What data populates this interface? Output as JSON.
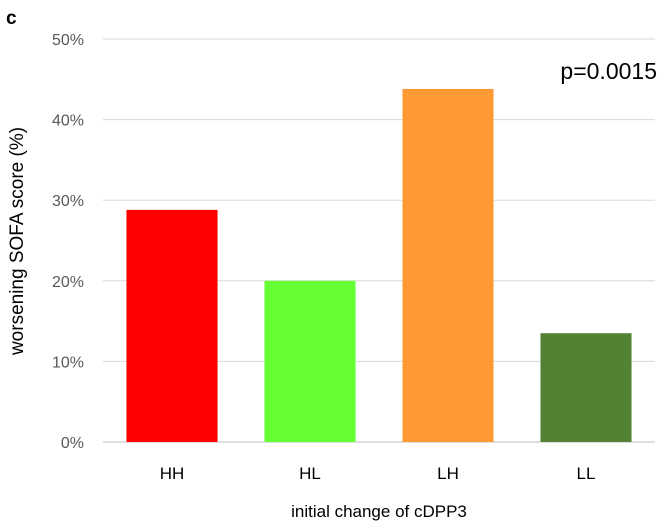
{
  "panel_label": "c",
  "chart_data": {
    "type": "bar",
    "categories": [
      "HH",
      "HL",
      "LH",
      "LL"
    ],
    "values": [
      28.8,
      20.0,
      43.8,
      13.5
    ],
    "colors": [
      "#ff0000",
      "#66ff33",
      "#ff9933",
      "#548235"
    ],
    "ylabel": "worsening SOFA score (%)",
    "xlabel": "initial change of cDPP3",
    "ylim": [
      0,
      50
    ],
    "yticks": [
      "0%",
      "10%",
      "20%",
      "30%",
      "40%",
      "50%"
    ],
    "ytick_values": [
      0,
      10,
      20,
      30,
      40,
      50
    ],
    "grid": true,
    "annotation": "p=0.0015"
  }
}
